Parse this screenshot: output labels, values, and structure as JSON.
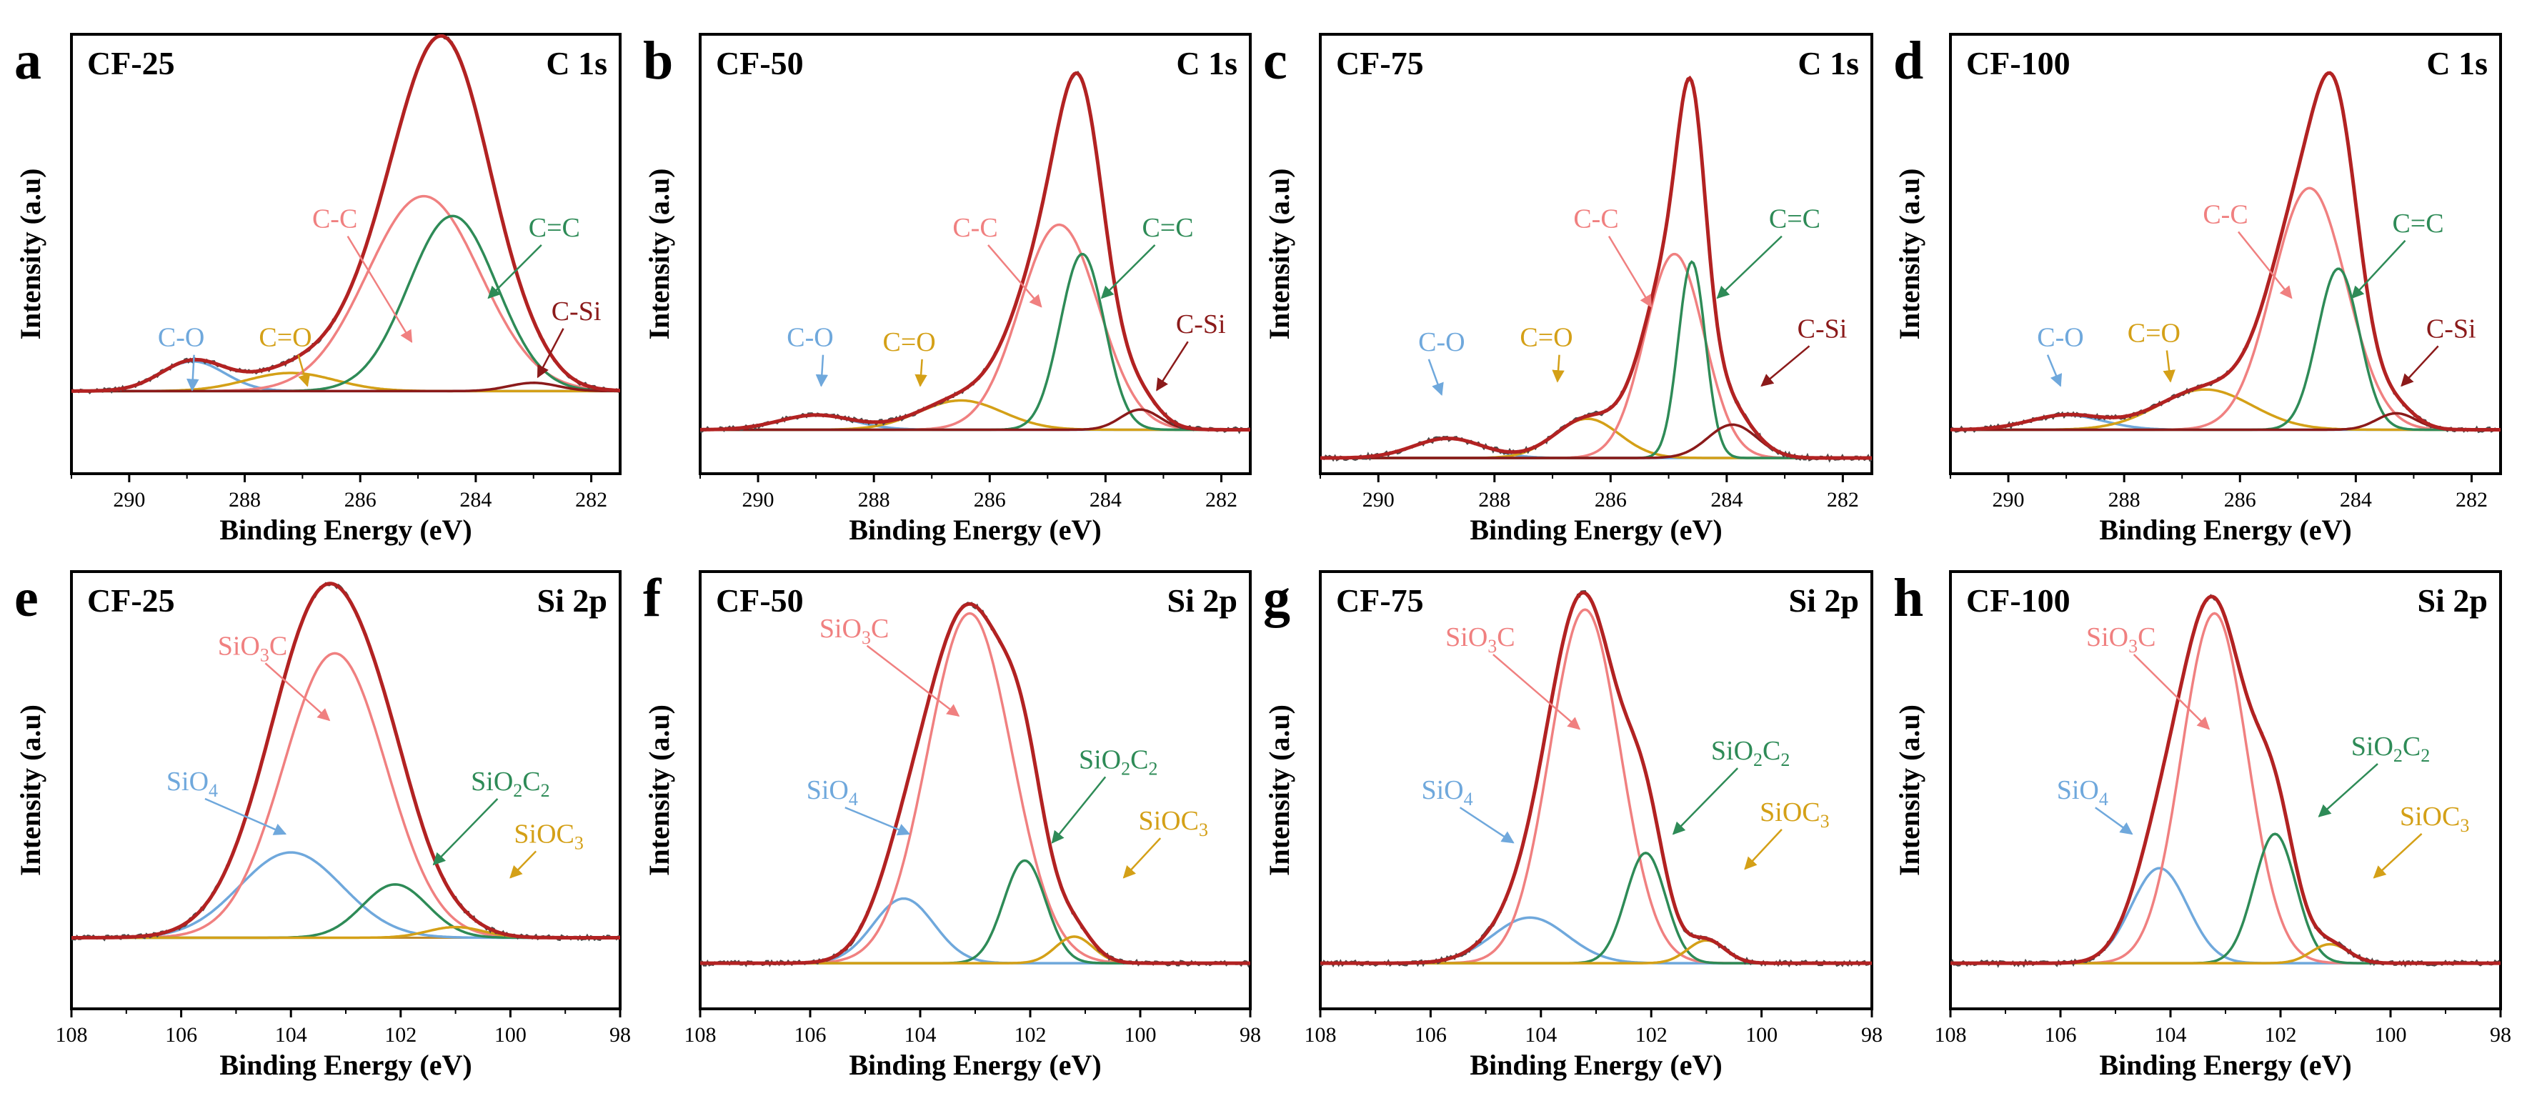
{
  "figure": {
    "colors": {
      "frame": "#000000",
      "raw": "#4a4a4a",
      "envelope": "#b22222",
      "baseline": "#c08a2b",
      "peaks": {
        "c_o": "#6fa8dc",
        "c_eq_o": "#d4a017",
        "c_c": "#f08080",
        "c_eq_c": "#2e8b57",
        "c_si": "#8b1a1a",
        "sio4": "#6fa8dc",
        "sio3c": "#f08080",
        "sio2c2": "#2e8b57",
        "sioc3": "#d4a017"
      }
    }
  },
  "chart_data": [
    {
      "type": "line",
      "panel": "a",
      "sample": "CF-25",
      "region": "C 1s",
      "xlabel": "Binding Energy (eV)",
      "ylabel": "Intensity (a.u)",
      "xlim": [
        291,
        281.5
      ],
      "ylim": [
        -0.25,
        1.08
      ],
      "xticks": [
        290,
        288,
        286,
        284,
        282
      ],
      "peaks": [
        {
          "name": "C-O",
          "label": "C-O",
          "center": 288.9,
          "height": 0.09,
          "fwhm": 1.3,
          "color_key": "c_o"
        },
        {
          "name": "C=O",
          "label": "C=O",
          "center": 287.2,
          "height": 0.055,
          "fwhm": 1.8,
          "color_key": "c_eq_o"
        },
        {
          "name": "C-C",
          "label": "C-C",
          "center": 284.9,
          "height": 0.59,
          "fwhm": 2.3,
          "color_key": "c_c"
        },
        {
          "name": "C=C",
          "label": "C=C",
          "center": 284.4,
          "height": 0.53,
          "fwhm": 1.8,
          "color_key": "c_eq_c"
        },
        {
          "name": "C-Si",
          "label": "C-Si",
          "center": 283.0,
          "height": 0.025,
          "fwhm": 1.0,
          "color_key": "c_si"
        }
      ]
    },
    {
      "type": "line",
      "panel": "b",
      "sample": "CF-50",
      "region": "C 1s",
      "xlabel": "Binding Energy (eV)",
      "ylabel": "Intensity (a.u)",
      "xlim": [
        291,
        281.5
      ],
      "ylim": [
        -0.12,
        1.08
      ],
      "xticks": [
        290,
        288,
        286,
        284,
        282
      ],
      "peaks": [
        {
          "name": "C-O",
          "label": "C-O",
          "center": 289.0,
          "height": 0.04,
          "fwhm": 1.5,
          "color_key": "c_o"
        },
        {
          "name": "C=O",
          "label": "C=O",
          "center": 286.5,
          "height": 0.08,
          "fwhm": 1.7,
          "color_key": "c_eq_o"
        },
        {
          "name": "C-C",
          "label": "C-C",
          "center": 284.8,
          "height": 0.56,
          "fwhm": 1.6,
          "color_key": "c_c"
        },
        {
          "name": "C=C",
          "label": "C=C",
          "center": 284.4,
          "height": 0.48,
          "fwhm": 0.9,
          "color_key": "c_eq_c"
        },
        {
          "name": "C-Si",
          "label": "C-Si",
          "center": 283.4,
          "height": 0.055,
          "fwhm": 0.8,
          "color_key": "c_si"
        }
      ]
    },
    {
      "type": "line",
      "panel": "c",
      "sample": "CF-75",
      "region": "C 1s",
      "xlabel": "Binding Energy (eV)",
      "ylabel": "Intensity (a.u)",
      "xlim": [
        291,
        281.5
      ],
      "ylim": [
        -0.04,
        1.08
      ],
      "xticks": [
        290,
        288,
        286,
        284,
        282
      ],
      "peaks": [
        {
          "name": "C-O",
          "label": "C-O",
          "center": 288.8,
          "height": 0.05,
          "fwhm": 1.4,
          "color_key": "c_o"
        },
        {
          "name": "C=O",
          "label": "C=O",
          "center": 286.4,
          "height": 0.1,
          "fwhm": 1.3,
          "color_key": "c_eq_o"
        },
        {
          "name": "C-C",
          "label": "C-C",
          "center": 284.9,
          "height": 0.52,
          "fwhm": 1.2,
          "color_key": "c_c"
        },
        {
          "name": "C=C",
          "label": "C=C",
          "center": 284.6,
          "height": 0.5,
          "fwhm": 0.55,
          "color_key": "c_eq_c"
        },
        {
          "name": "C-Si",
          "label": "C-Si",
          "center": 283.9,
          "height": 0.085,
          "fwhm": 1.0,
          "color_key": "c_si"
        }
      ]
    },
    {
      "type": "line",
      "panel": "d",
      "sample": "CF-100",
      "region": "C 1s",
      "xlabel": "Binding Energy (eV)",
      "ylabel": "Intensity (a.u)",
      "xlim": [
        291,
        281.5
      ],
      "ylim": [
        -0.12,
        1.08
      ],
      "xticks": [
        290,
        288,
        286,
        284,
        282
      ],
      "peaks": [
        {
          "name": "C-O",
          "label": "C-O",
          "center": 289.0,
          "height": 0.04,
          "fwhm": 1.5,
          "color_key": "c_o"
        },
        {
          "name": "C=O",
          "label": "C=O",
          "center": 286.6,
          "height": 0.11,
          "fwhm": 1.9,
          "color_key": "c_eq_o"
        },
        {
          "name": "C-C",
          "label": "C-C",
          "center": 284.8,
          "height": 0.66,
          "fwhm": 1.5,
          "color_key": "c_c"
        },
        {
          "name": "C=C",
          "label": "C=C",
          "center": 284.3,
          "height": 0.44,
          "fwhm": 0.85,
          "color_key": "c_eq_c"
        },
        {
          "name": "C-Si",
          "label": "C-Si",
          "center": 283.3,
          "height": 0.045,
          "fwhm": 0.8,
          "color_key": "c_si"
        }
      ]
    },
    {
      "type": "line",
      "panel": "e",
      "sample": "CF-25",
      "region": "Si 2p",
      "xlabel": "Binding Energy (eV)",
      "ylabel": "Intensity (a.u)",
      "xlim": [
        108,
        98
      ],
      "ylim": [
        -0.2,
        1.03
      ],
      "xticks": [
        108,
        106,
        104,
        102,
        100,
        98
      ],
      "peaks": [
        {
          "name": "SiO4",
          "label": "SiO",
          "sub": "4",
          "label_tail": "",
          "center": 104.0,
          "height": 0.24,
          "fwhm": 2.2,
          "color_key": "sio4"
        },
        {
          "name": "SiO3C",
          "label": "SiO",
          "sub": "3",
          "label_tail": "C",
          "center": 103.2,
          "height": 0.8,
          "fwhm": 2.2,
          "color_key": "sio3c"
        },
        {
          "name": "SiO2C2",
          "label": "SiO",
          "sub": "2",
          "label_tail": "C",
          "sub2": "2",
          "center": 102.1,
          "height": 0.15,
          "fwhm": 1.4,
          "color_key": "sio2c2"
        },
        {
          "name": "SiOC3",
          "label": "SiOC",
          "sub": "3",
          "label_tail": "",
          "center": 101.0,
          "height": 0.03,
          "fwhm": 1.2,
          "color_key": "sioc3"
        }
      ]
    },
    {
      "type": "line",
      "panel": "f",
      "sample": "CF-50",
      "region": "Si 2p",
      "xlabel": "Binding Energy (eV)",
      "ylabel": "Intensity (a.u)",
      "xlim": [
        108,
        98
      ],
      "ylim": [
        -0.12,
        1.03
      ],
      "xticks": [
        108,
        106,
        104,
        102,
        100,
        98
      ],
      "peaks": [
        {
          "name": "SiO4",
          "label": "SiO",
          "sub": "4",
          "label_tail": "",
          "center": 104.3,
          "height": 0.17,
          "fwhm": 1.3,
          "color_key": "sio4"
        },
        {
          "name": "SiO3C",
          "label": "SiO",
          "sub": "3",
          "label_tail": "C",
          "center": 103.1,
          "height": 0.92,
          "fwhm": 1.8,
          "color_key": "sio3c"
        },
        {
          "name": "SiO2C2",
          "label": "SiO",
          "sub": "2",
          "label_tail": "C",
          "sub2": "2",
          "center": 102.1,
          "height": 0.27,
          "fwhm": 0.9,
          "color_key": "sio2c2"
        },
        {
          "name": "SiOC3",
          "label": "SiOC",
          "sub": "3",
          "label_tail": "",
          "center": 101.2,
          "height": 0.07,
          "fwhm": 0.8,
          "color_key": "sioc3"
        }
      ]
    },
    {
      "type": "line",
      "panel": "g",
      "sample": "CF-75",
      "region": "Si 2p",
      "xlabel": "Binding Energy (eV)",
      "ylabel": "Intensity (a.u)",
      "xlim": [
        108,
        98
      ],
      "ylim": [
        -0.12,
        1.03
      ],
      "xticks": [
        108,
        106,
        104,
        102,
        100,
        98
      ],
      "peaks": [
        {
          "name": "SiO4",
          "label": "SiO",
          "sub": "4",
          "label_tail": "",
          "center": 104.2,
          "height": 0.12,
          "fwhm": 1.6,
          "color_key": "sio4"
        },
        {
          "name": "SiO3C",
          "label": "SiO",
          "sub": "3",
          "label_tail": "C",
          "center": 103.2,
          "height": 0.93,
          "fwhm": 1.5,
          "color_key": "sio3c"
        },
        {
          "name": "SiO2C2",
          "label": "SiO",
          "sub": "2",
          "label_tail": "C",
          "sub2": "2",
          "center": 102.1,
          "height": 0.29,
          "fwhm": 0.85,
          "color_key": "sio2c2"
        },
        {
          "name": "SiOC3",
          "label": "SiOC",
          "sub": "3",
          "label_tail": "",
          "center": 101.0,
          "height": 0.06,
          "fwhm": 0.8,
          "color_key": "sioc3"
        }
      ]
    },
    {
      "type": "line",
      "panel": "h",
      "sample": "CF-100",
      "region": "Si 2p",
      "xlabel": "Binding Energy (eV)",
      "ylabel": "Intensity (a.u)",
      "xlim": [
        108,
        98
      ],
      "ylim": [
        -0.12,
        1.03
      ],
      "xticks": [
        108,
        106,
        104,
        102,
        100,
        98
      ],
      "peaks": [
        {
          "name": "SiO4",
          "label": "SiO",
          "sub": "4",
          "label_tail": "",
          "center": 104.2,
          "height": 0.25,
          "fwhm": 1.2,
          "color_key": "sio4"
        },
        {
          "name": "SiO3C",
          "label": "SiO",
          "sub": "3",
          "label_tail": "C",
          "center": 103.2,
          "height": 0.92,
          "fwhm": 1.4,
          "color_key": "sio3c"
        },
        {
          "name": "SiO2C2",
          "label": "SiO",
          "sub": "2",
          "label_tail": "C",
          "sub2": "2",
          "center": 102.1,
          "height": 0.34,
          "fwhm": 0.9,
          "color_key": "sio2c2"
        },
        {
          "name": "SiOC3",
          "label": "SiOC",
          "sub": "3",
          "label_tail": "",
          "center": 101.1,
          "height": 0.05,
          "fwhm": 0.8,
          "color_key": "sioc3"
        }
      ]
    }
  ]
}
